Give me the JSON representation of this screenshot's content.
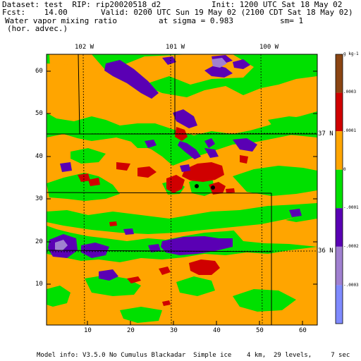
{
  "header": {
    "dataset": "Dataset: test  RIP: rip20020518_d2",
    "init": "Init: 1200 UTC Sat 18 May 02",
    "fcst": "Fcst:    14.00",
    "valid": "Valid: 0200 UTC Sun 19 May 02 (2100 CDT Sat 18 May 02)",
    "field": "Water vapor mixing ratio",
    "sigma": "at sigma = 0.983",
    "sm": "sm= 1",
    "field2": "(hor. advec.)"
  },
  "lon_labels": [
    "102 W",
    "101 W",
    "100 W"
  ],
  "lat_labels": [
    "37 N",
    "36 N"
  ],
  "y_ticks": [
    "60",
    "50",
    "40",
    "30",
    "20",
    "10"
  ],
  "x_ticks": [
    "10",
    "20",
    "30",
    "40",
    "50",
    "60"
  ],
  "colorbar": {
    "unit": "g kg-1",
    "labels": [
      ".0003",
      ".0001",
      "0",
      "-.0001",
      "-.0002",
      "-.0003"
    ],
    "colors": [
      "#8b4513",
      "#d00000",
      "#ffa500",
      "#00e000",
      "#5a00b4",
      "#a080d0",
      "#7f8aff"
    ]
  },
  "palette": {
    "brown": "#8b4513",
    "red": "#d00000",
    "orange": "#ffa500",
    "green": "#00e000",
    "purple": "#5a00b4",
    "lavender": "#a080d0",
    "blue": "#7f8aff",
    "white": "#ffffff"
  },
  "footer": "Model info: V3.5.0 No Cumulus Blackadar  Simple ice    4 km,  29 levels,     7 sec"
}
